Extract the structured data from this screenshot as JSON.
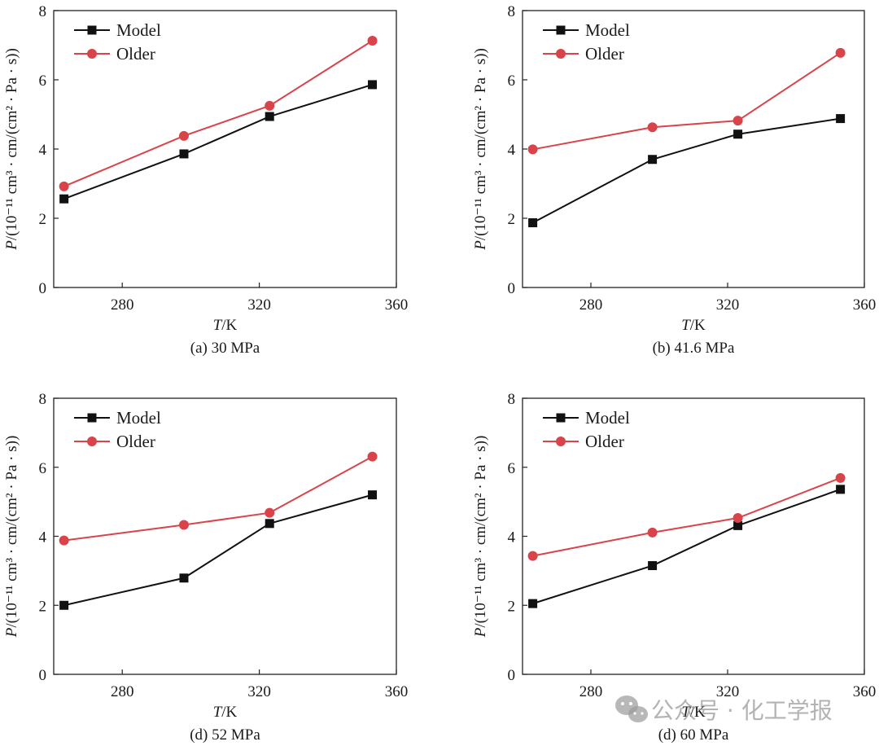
{
  "chart_data": [
    {
      "type": "line",
      "title": "(a) 30 MPa",
      "xlabel": "T/K",
      "ylabel": "P/(10⁻¹¹ cm³ · cm/(cm² · Pa · s))",
      "xlim": [
        260,
        360
      ],
      "ylim": [
        0,
        8
      ],
      "xticks": [
        280,
        320,
        360
      ],
      "yticks": [
        0,
        2,
        4,
        6,
        8
      ],
      "legend_position": "top-left",
      "x": [
        263,
        298,
        323,
        353
      ],
      "series": [
        {
          "name": "Model",
          "marker": "square",
          "color": "#111111",
          "values": [
            2.56,
            3.86,
            4.94,
            5.86
          ]
        },
        {
          "name": "Older",
          "marker": "circle",
          "color": "#d9434a",
          "values": [
            2.92,
            4.38,
            5.25,
            7.13
          ]
        }
      ]
    },
    {
      "type": "line",
      "title": "(b) 41.6 MPa",
      "xlabel": "T/K",
      "ylabel": "P/(10⁻¹¹ cm³ · cm/(cm² · Pa · s))",
      "xlim": [
        260,
        360
      ],
      "ylim": [
        0,
        8
      ],
      "xticks": [
        280,
        320,
        360
      ],
      "yticks": [
        0,
        2,
        4,
        6,
        8
      ],
      "legend_position": "top-left",
      "x": [
        263,
        298,
        323,
        353
      ],
      "series": [
        {
          "name": "Model",
          "marker": "square",
          "color": "#111111",
          "values": [
            1.87,
            3.7,
            4.43,
            4.88
          ]
        },
        {
          "name": "Older",
          "marker": "circle",
          "color": "#d9434a",
          "values": [
            3.99,
            4.63,
            4.82,
            6.78
          ]
        }
      ]
    },
    {
      "type": "line",
      "title": "(d) 52 MPa",
      "xlabel": "T/K",
      "ylabel": "P/(10⁻¹¹ cm³ · cm/(cm² · Pa · s))",
      "xlim": [
        260,
        360
      ],
      "ylim": [
        0,
        8
      ],
      "xticks": [
        280,
        320,
        360
      ],
      "yticks": [
        0,
        2,
        4,
        6,
        8
      ],
      "legend_position": "top-left",
      "x": [
        263,
        298,
        323,
        353
      ],
      "series": [
        {
          "name": "Model",
          "marker": "square",
          "color": "#111111",
          "values": [
            2.0,
            2.79,
            4.37,
            5.2
          ]
        },
        {
          "name": "Older",
          "marker": "circle",
          "color": "#d9434a",
          "values": [
            3.88,
            4.33,
            4.68,
            6.31
          ]
        }
      ]
    },
    {
      "type": "line",
      "title": "(d) 60 MPa",
      "xlabel": "T/K",
      "ylabel": "P/(10⁻¹¹ cm³ · cm/(cm² · Pa · s))",
      "xlim": [
        260,
        360
      ],
      "ylim": [
        0,
        8
      ],
      "xticks": [
        280,
        320,
        360
      ],
      "yticks": [
        0,
        2,
        4,
        6,
        8
      ],
      "legend_position": "top-left",
      "x": [
        263,
        298,
        323,
        353
      ],
      "series": [
        {
          "name": "Model",
          "marker": "square",
          "color": "#111111",
          "values": [
            2.05,
            3.15,
            4.31,
            5.36
          ]
        },
        {
          "name": "Older",
          "marker": "circle",
          "color": "#d9434a",
          "values": [
            3.43,
            4.11,
            4.53,
            5.69
          ]
        }
      ]
    }
  ],
  "watermark": {
    "text": "公众号 · 化工学报",
    "icon": "wechat-icon"
  }
}
